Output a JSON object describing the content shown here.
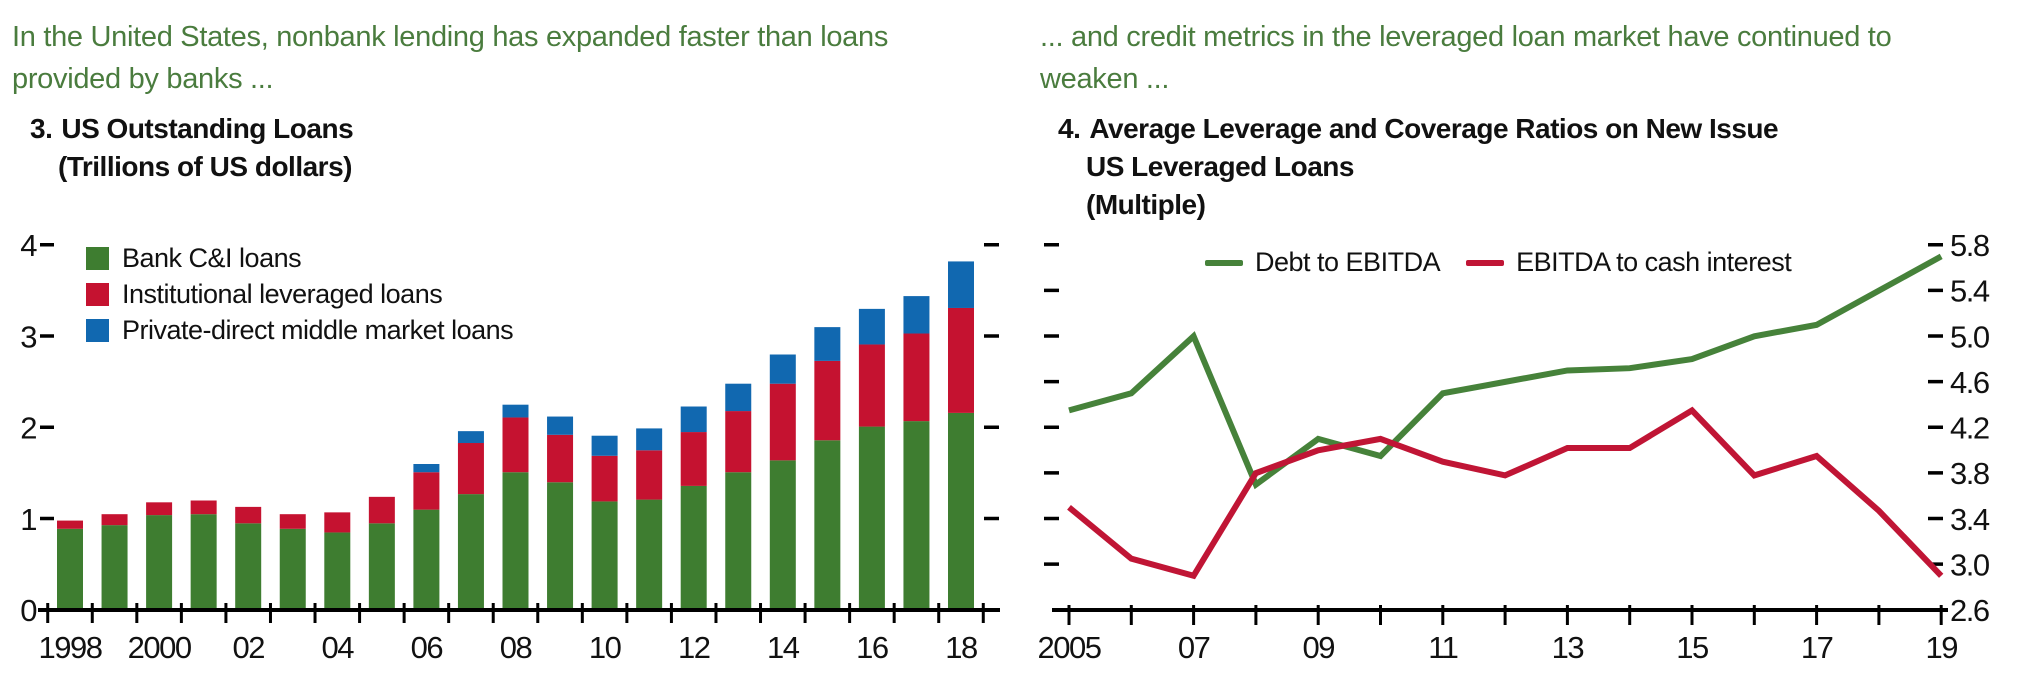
{
  "colors": {
    "header_green": "#4a7c3e",
    "bar_green": "#3e7d30",
    "bar_red": "#c51230",
    "bar_blue": "#1168b0",
    "line_green": "#46823a",
    "line_red": "#c01535",
    "axis_black": "#000000"
  },
  "left_panel": {
    "header_line1": "In the United States, nonbank lending has expanded faster than loans",
    "header_line2": "provided by banks ...",
    "title_number": "3.",
    "title": "US Outstanding Loans",
    "subtitle": "(Trillions of US dollars)",
    "legend": [
      {
        "label": "Bank C&I loans",
        "color": "#3e7d30"
      },
      {
        "label": "Institutional leveraged loans",
        "color": "#c51230"
      },
      {
        "label": "Private-direct middle market loans",
        "color": "#1168b0"
      }
    ],
    "chart_data": {
      "type": "bar",
      "stacked": true,
      "title": "3. US Outstanding Loans",
      "ylabel": "Trillions of US dollars",
      "categories": [
        "1998",
        "1999",
        "2000",
        "2001",
        "2002",
        "2003",
        "2004",
        "2005",
        "2006",
        "2007",
        "2008",
        "2009",
        "2010",
        "2011",
        "2012",
        "2013",
        "2014",
        "2015",
        "2016",
        "2017",
        "2018"
      ],
      "x_tick_labels": [
        "1998",
        "",
        "2000",
        "",
        "02",
        "",
        "04",
        "",
        "06",
        "",
        "08",
        "",
        "10",
        "",
        "12",
        "",
        "14",
        "",
        "16",
        "",
        "18"
      ],
      "series": [
        {
          "name": "Bank C&I loans",
          "color": "#3e7d30",
          "values": [
            0.89,
            0.93,
            1.04,
            1.05,
            0.95,
            0.89,
            0.85,
            0.95,
            1.1,
            1.27,
            1.51,
            1.4,
            1.19,
            1.21,
            1.36,
            1.51,
            1.64,
            1.86,
            2.01,
            2.07,
            2.16
          ]
        },
        {
          "name": "Institutional leveraged loans",
          "color": "#c51230",
          "values": [
            0.09,
            0.12,
            0.14,
            0.15,
            0.18,
            0.16,
            0.22,
            0.29,
            0.41,
            0.56,
            0.6,
            0.52,
            0.5,
            0.54,
            0.59,
            0.67,
            0.84,
            0.87,
            0.9,
            0.96,
            1.15
          ]
        },
        {
          "name": "Private-direct middle market loans",
          "color": "#1168b0",
          "values": [
            0.0,
            0.0,
            0.0,
            0.0,
            0.0,
            0.0,
            0.0,
            0.0,
            0.09,
            0.13,
            0.14,
            0.2,
            0.22,
            0.24,
            0.28,
            0.3,
            0.32,
            0.37,
            0.39,
            0.41,
            0.51
          ]
        }
      ],
      "yticks": [
        0,
        1,
        2,
        3,
        4
      ],
      "ylim": [
        0,
        4.2
      ],
      "grid": false,
      "legend_position": "inside-top-left"
    }
  },
  "right_panel": {
    "header_line1": "... and credit metrics in the leveraged loan market have continued to",
    "header_line2": "weaken ...",
    "title_number": "4.",
    "title_line1": "Average Leverage and Coverage Ratios on New Issue",
    "title_line2": "US Leveraged Loans",
    "subtitle": "(Multiple)",
    "legend": [
      {
        "label": "Debt to EBITDA",
        "color": "#46823a"
      },
      {
        "label": "EBITDA to cash interest",
        "color": "#c01535"
      }
    ],
    "chart_data": {
      "type": "line",
      "title": "4. Average Leverage and Coverage Ratios on New Issue US Leveraged Loans",
      "ylabel": "Multiple",
      "categories": [
        "2005",
        "2006",
        "2007",
        "2008",
        "2009",
        "2010",
        "2011",
        "2012",
        "2013",
        "2014",
        "2015",
        "2016",
        "2017",
        "2018",
        "2019"
      ],
      "x_tick_labels": [
        "2005",
        "",
        "07",
        "",
        "09",
        "",
        "11",
        "",
        "13",
        "",
        "15",
        "",
        "17",
        "",
        "19"
      ],
      "series": [
        {
          "name": "Debt to EBITDA",
          "color": "#46823a",
          "values": [
            4.35,
            4.5,
            5.0,
            3.7,
            4.1,
            3.95,
            4.5,
            4.6,
            4.7,
            4.72,
            4.8,
            5.0,
            5.1,
            5.4,
            5.7
          ]
        },
        {
          "name": "EBITDA to cash interest",
          "color": "#c01535",
          "values": [
            3.5,
            3.05,
            2.9,
            3.8,
            4.0,
            4.1,
            3.9,
            3.78,
            4.02,
            4.02,
            4.35,
            3.78,
            3.95,
            3.47,
            2.9
          ]
        }
      ],
      "yticks": [
        2.6,
        3.0,
        3.4,
        3.8,
        4.2,
        4.6,
        5.0,
        5.4,
        5.8
      ],
      "ylim": [
        2.6,
        5.9
      ],
      "grid": false,
      "y_axis_labels_side": "right",
      "legend_position": "inside-top"
    }
  }
}
